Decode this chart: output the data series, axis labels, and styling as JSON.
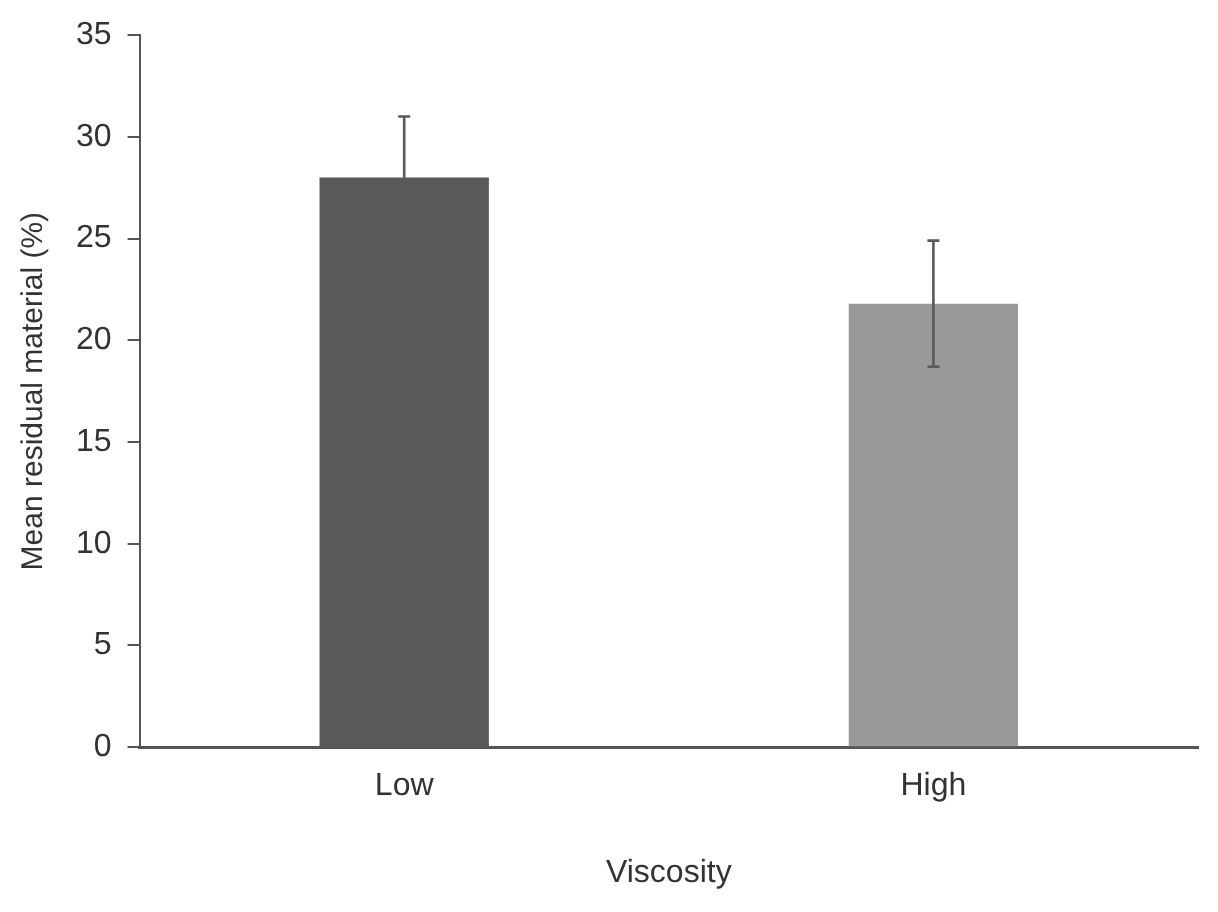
{
  "chart_data": {
    "type": "bar",
    "xlabel": "Viscosity",
    "ylabel": "Mean residual material (%)",
    "categories": [
      "Low",
      "High"
    ],
    "values": [
      28.0,
      21.8
    ],
    "colors": [
      "#595959",
      "#999999"
    ],
    "errors": [
      3.0,
      3.1
    ],
    "ylim": [
      0,
      35
    ],
    "yticks": [
      0,
      5,
      10,
      15,
      20,
      25,
      30,
      35
    ],
    "grid": false,
    "legend": false
  }
}
